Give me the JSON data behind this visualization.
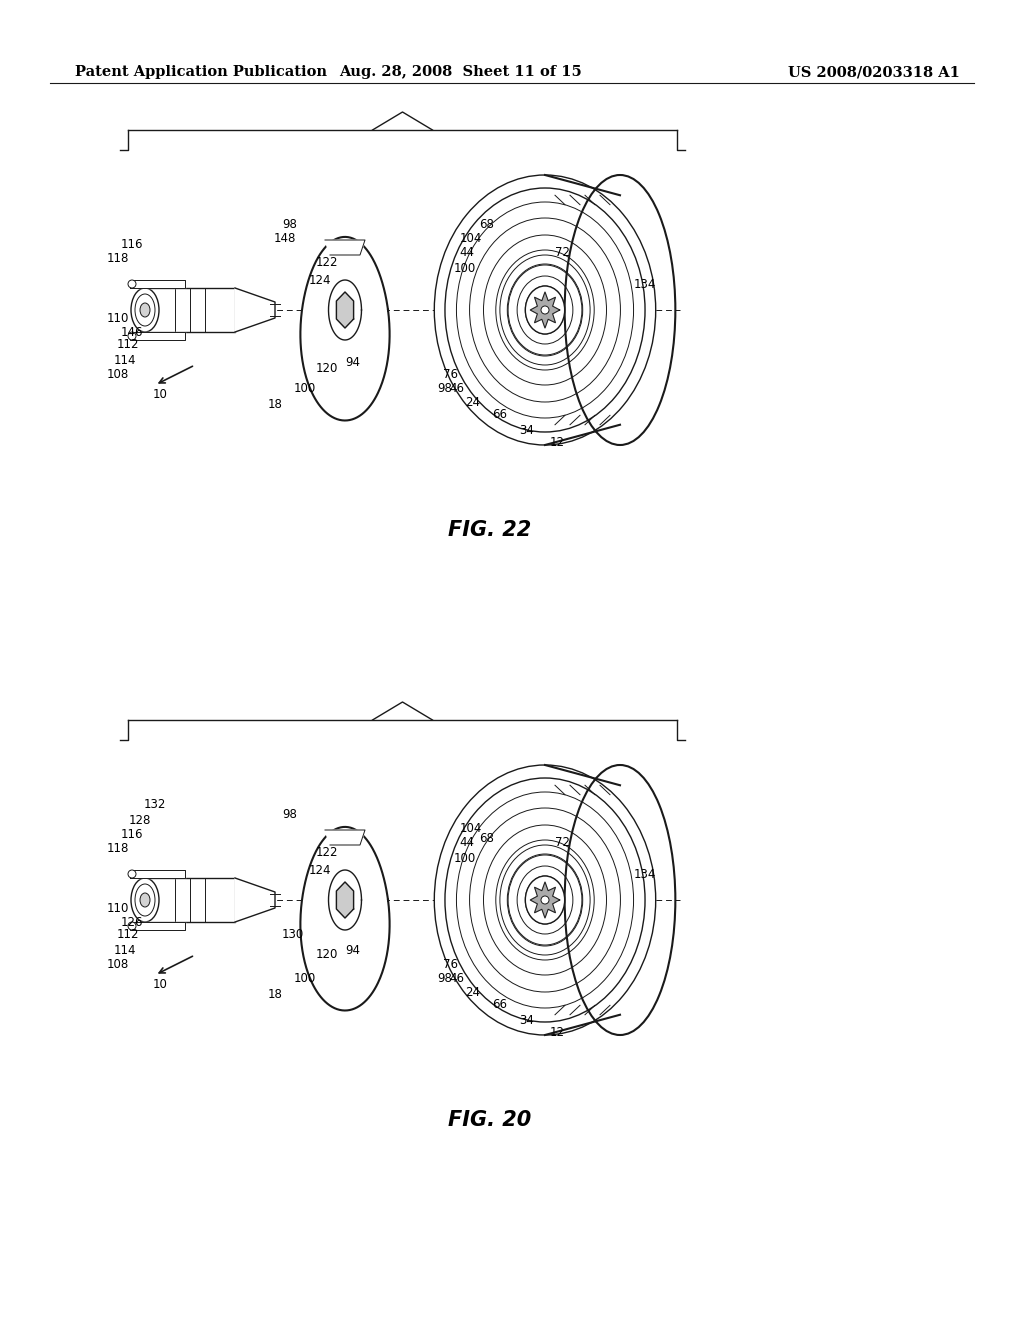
{
  "header_left": "Patent Application Publication",
  "header_mid": "Aug. 28, 2008  Sheet 11 of 15",
  "header_right": "US 2008/0203318 A1",
  "fig22_label": "FIG. 22",
  "fig20_label": "FIG. 20",
  "bg_color": "#ffffff",
  "line_color": "#1a1a1a",
  "header_fontsize": 10.5,
  "label_fontsize": 8.5,
  "fig_label_fontsize": 15
}
